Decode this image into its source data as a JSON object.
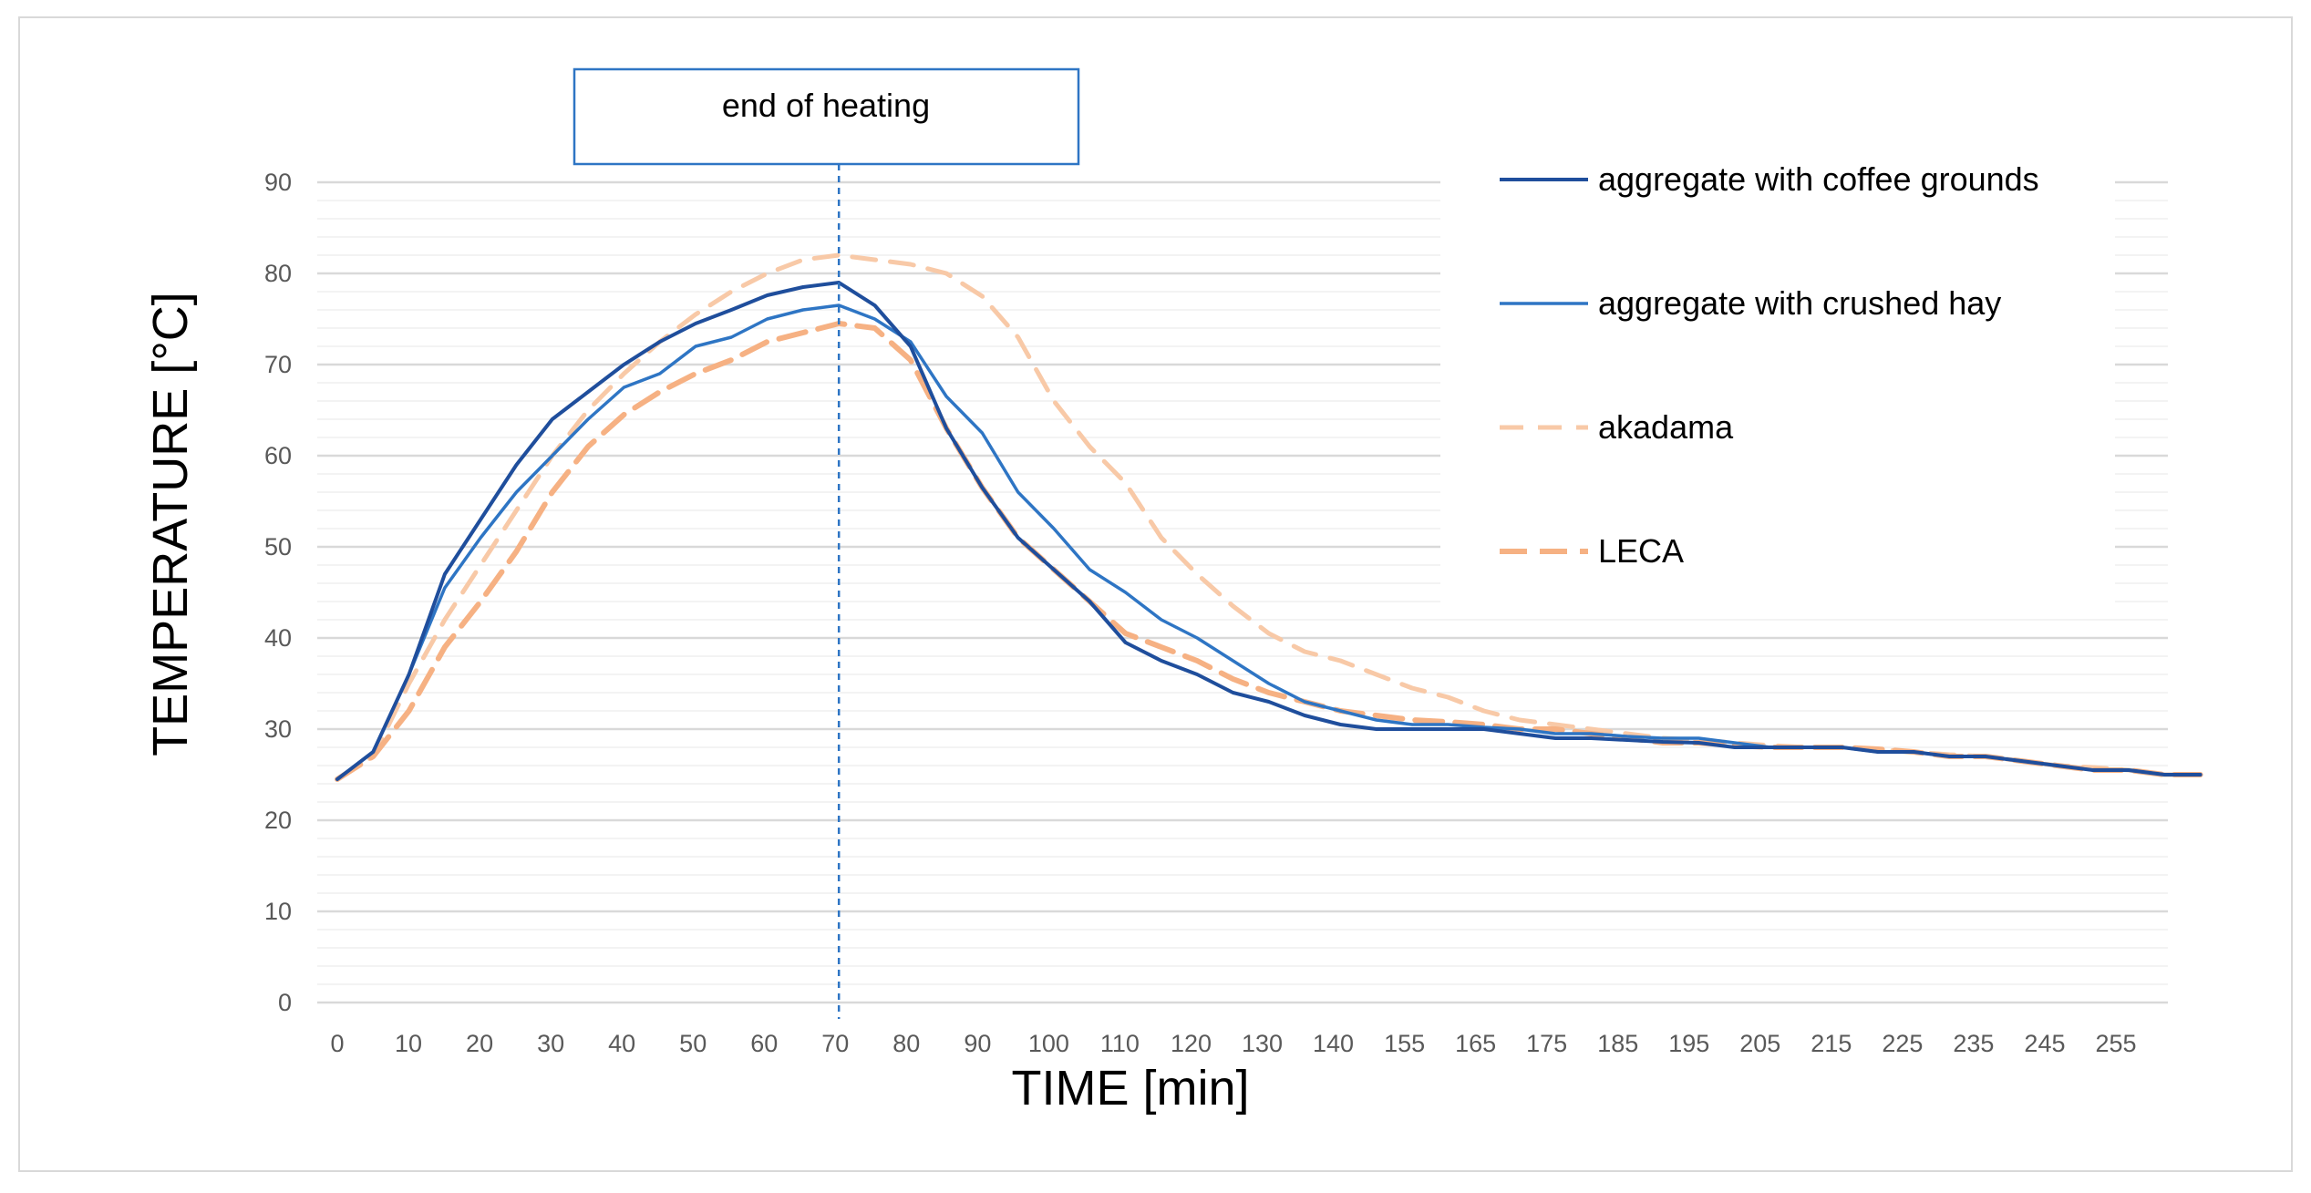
{
  "chart_data": {
    "type": "line",
    "title": "",
    "xlabel": "TIME [min]",
    "ylabel": "TEMPERATURE  [°C]",
    "ylim": [
      0,
      90
    ],
    "yticks": [
      0,
      10,
      20,
      30,
      40,
      50,
      60,
      70,
      80,
      90
    ],
    "x": [
      0,
      5,
      10,
      15,
      20,
      25,
      30,
      35,
      40,
      45,
      50,
      55,
      60,
      65,
      70,
      75,
      80,
      85,
      90,
      95,
      100,
      105,
      110,
      115,
      120,
      125,
      130,
      135,
      140,
      145,
      150,
      155,
      160,
      165,
      170,
      175,
      180,
      185,
      190,
      195,
      200,
      205,
      210,
      215,
      220,
      225,
      230,
      235,
      240,
      245,
      250,
      255,
      260
    ],
    "x_tick_labels": [
      "0",
      "10",
      "20",
      "30",
      "40",
      "50",
      "60",
      "70",
      "80",
      "90",
      "100",
      "110",
      "120",
      "130",
      "140",
      "155",
      "165",
      "175",
      "185",
      "195",
      "205",
      "215",
      "225",
      "235",
      "245",
      "255"
    ],
    "grid": "horizontal major and minor",
    "legend_position": "top-right",
    "annotation": {
      "label": "end of heating",
      "x": 70
    },
    "series": [
      {
        "name": "aggregate with coffee grounds",
        "color": "#1f4e9c",
        "style": "solid",
        "values": [
          24.5,
          27.5,
          36,
          47,
          53,
          59,
          64,
          67,
          70,
          72.5,
          74.5,
          76,
          77.6,
          78.5,
          79,
          76.5,
          72,
          63,
          56.5,
          51,
          47.5,
          44,
          39.5,
          37.5,
          36,
          34,
          33,
          31.5,
          30.5,
          30,
          30,
          30,
          30,
          29.5,
          29,
          29,
          28.8,
          28.6,
          28.5,
          28,
          28,
          28,
          28,
          27.5,
          27.5,
          27,
          27,
          26.5,
          26,
          25.5,
          25.5,
          25,
          25
        ]
      },
      {
        "name": "aggregate with crushed hay",
        "color": "#2e75c4",
        "style": "solid",
        "values": [
          24.5,
          27.5,
          36,
          45.5,
          51,
          56,
          60,
          64,
          67.5,
          69,
          72,
          73,
          75,
          76,
          76.5,
          75,
          72.5,
          66.5,
          62.5,
          56,
          52,
          47.5,
          45,
          42,
          40,
          37.5,
          35,
          33,
          32,
          31,
          30.5,
          30.5,
          30.2,
          30,
          29.5,
          29.5,
          29.2,
          29,
          29,
          28.5,
          28,
          28,
          28,
          27.5,
          27.5,
          27,
          27,
          26.5,
          26,
          25.5,
          25.5,
          25,
          25
        ]
      },
      {
        "name": "akadama",
        "color": "#f8c9a7",
        "style": "dashed",
        "values": [
          24.5,
          27,
          35,
          42,
          48,
          54,
          60,
          65,
          69,
          72.5,
          75.5,
          78,
          80,
          81.5,
          82,
          81.5,
          81,
          80,
          77.5,
          73,
          66,
          61,
          57,
          51,
          47,
          43.5,
          40.5,
          38.5,
          37.5,
          36,
          34.5,
          33.5,
          32,
          31,
          30.5,
          30,
          29.5,
          29,
          28.8,
          28.5,
          28.2,
          28,
          28,
          27.8,
          27.5,
          27.2,
          27,
          26.5,
          26,
          25.8,
          25.5,
          25,
          25
        ]
      },
      {
        "name": "LECA",
        "color": "#f6b183",
        "style": "dashed",
        "values": [
          24.5,
          27,
          32,
          39,
          44,
          49.5,
          56,
          61,
          64.5,
          67,
          69,
          70.5,
          72.5,
          73.5,
          74.5,
          74,
          70.5,
          63,
          56.5,
          51,
          47.5,
          44,
          40.5,
          39,
          37.5,
          35.5,
          34,
          33,
          32,
          31.5,
          31,
          30.8,
          30.5,
          30,
          30,
          29.5,
          29,
          28.5,
          28.5,
          28.2,
          28,
          28,
          28,
          27.8,
          27.5,
          27,
          27,
          26.5,
          26,
          25.5,
          25.5,
          25,
          25
        ]
      }
    ]
  }
}
